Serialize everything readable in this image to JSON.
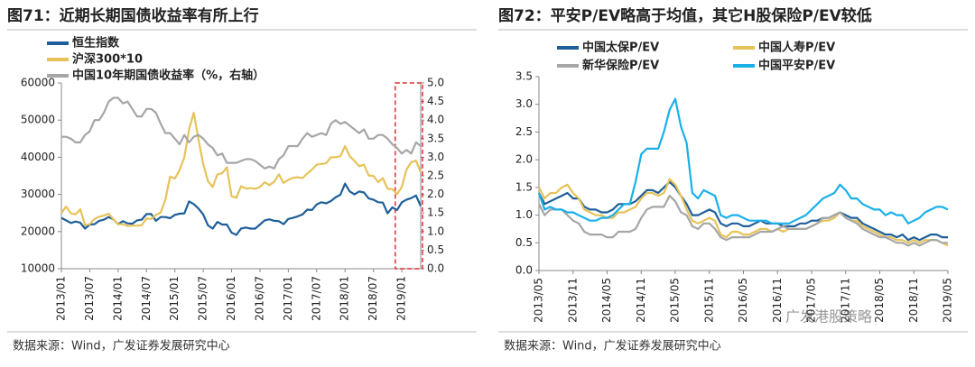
{
  "chart_data": [
    {
      "type": "line",
      "title": "图71：近期长期国债收益率有所上行",
      "source": "数据来源：Wind，广发证券发展研究中心",
      "categories": [
        "2013/01",
        null,
        null,
        null,
        null,
        null,
        "2013/07",
        null,
        null,
        null,
        null,
        null,
        "2014/01",
        null,
        null,
        null,
        null,
        null,
        "2014/07",
        null,
        null,
        null,
        null,
        null,
        "2015/01",
        null,
        null,
        null,
        null,
        null,
        "2015/07",
        null,
        null,
        null,
        null,
        null,
        "2016/01",
        null,
        null,
        null,
        null,
        null,
        "2016/07",
        null,
        null,
        null,
        null,
        null,
        "2017/01",
        null,
        null,
        null,
        null,
        null,
        "2017/07",
        null,
        null,
        null,
        null,
        null,
        "2018/01",
        null,
        null,
        null,
        null,
        null,
        "2018/07",
        null,
        null,
        null,
        null,
        null,
        "2019/01",
        null,
        null,
        null,
        null
      ],
      "ylim": [
        10000,
        60000
      ],
      "yticks": [
        10000,
        20000,
        30000,
        40000,
        50000,
        60000
      ],
      "y2lim": [
        0,
        5
      ],
      "y2ticks": [
        {
          "value": 0,
          "label": "0.0"
        },
        {
          "value": 0.5,
          "label": "0.5"
        },
        {
          "value": 1,
          "label": "1.0"
        },
        {
          "value": 1.5,
          "label": "1.5"
        },
        {
          "value": 2,
          "label": "2.0"
        },
        {
          "value": 2.5,
          "label": "2.5"
        },
        {
          "value": 3,
          "label": "3.0"
        },
        {
          "value": 3.5,
          "label": "3.5"
        },
        {
          "value": 4,
          "label": "4.0"
        },
        {
          "value": 4.5,
          "label": "4.5"
        },
        {
          "value": 5,
          "label": "5.0"
        }
      ],
      "series": [
        {
          "name": "恒生指数",
          "color": "#1f5f99",
          "values": [
            23700,
            23000,
            22300,
            22700,
            22400,
            20800,
            21900,
            22000,
            22900,
            23200,
            23900,
            23300,
            22000,
            22800,
            22200,
            22100,
            23000,
            23200,
            24700,
            24700,
            22900,
            23900,
            23900,
            23600,
            24500,
            24800,
            24900,
            28100,
            27400,
            26200,
            24600,
            21700,
            20800,
            22600,
            21900,
            21900,
            19700,
            19100,
            20800,
            21100,
            20800,
            20800,
            21900,
            23000,
            23300,
            22900,
            22800,
            22000,
            23400,
            23700,
            24100,
            24600,
            25900,
            25800,
            27300,
            27900,
            27600,
            28200,
            29200,
            29900,
            32900,
            30800,
            30000,
            30800,
            30500,
            28900,
            28600,
            27900,
            27800,
            24900,
            26500,
            25800,
            27900,
            28600,
            29000,
            29700,
            26900
          ]
        },
        {
          "name": "沪深300*10",
          "color": "#e6c35a",
          "values": [
            25000,
            26700,
            24900,
            24600,
            26000,
            21700,
            22000,
            23400,
            24000,
            24300,
            24800,
            23300,
            22000,
            22000,
            21500,
            21600,
            21600,
            21700,
            23500,
            23400,
            24500,
            25100,
            28600,
            34800,
            34300,
            36500,
            40000,
            47500,
            52000,
            44700,
            38200,
            33600,
            32000,
            35400,
            35700,
            37300,
            29500,
            29100,
            32200,
            31600,
            31700,
            31500,
            32000,
            33300,
            32500,
            33400,
            35400,
            33100,
            33900,
            34500,
            34600,
            34400,
            35600,
            36700,
            38000,
            38200,
            38400,
            40000,
            40000,
            40300,
            43000,
            40300,
            39000,
            37600,
            38000,
            35100,
            35000,
            33300,
            34400,
            31500,
            31400,
            30100,
            32000,
            36700,
            38700,
            39100,
            36000
          ]
        },
        {
          "name": "中国10年期国债收益率（%，右轴）",
          "color": "#a6a6a6",
          "axis": "y2",
          "values": [
            3.55,
            3.55,
            3.5,
            3.4,
            3.4,
            3.6,
            3.7,
            4.0,
            4.0,
            4.2,
            4.5,
            4.6,
            4.6,
            4.45,
            4.5,
            4.3,
            4.1,
            4.1,
            4.3,
            4.3,
            4.2,
            3.9,
            3.65,
            3.65,
            3.5,
            3.35,
            3.6,
            3.4,
            3.55,
            3.6,
            3.5,
            3.35,
            3.25,
            3.05,
            3.1,
            2.85,
            2.85,
            2.85,
            2.9,
            2.95,
            2.95,
            2.9,
            2.8,
            2.7,
            2.75,
            2.7,
            2.95,
            3.05,
            3.3,
            3.3,
            3.3,
            3.5,
            3.65,
            3.55,
            3.6,
            3.65,
            3.6,
            3.9,
            4.0,
            3.9,
            3.95,
            3.85,
            3.75,
            3.65,
            3.75,
            3.5,
            3.5,
            3.6,
            3.6,
            3.5,
            3.35,
            3.25,
            3.1,
            3.2,
            3.1,
            3.4,
            3.3
          ]
        }
      ]
    },
    {
      "type": "line",
      "title": "图72：平安P/EV略高于均值，其它H股保险P/EV较低",
      "source": "数据来源：Wind，广发证券发展研究中心",
      "watermark": "广发港股策略",
      "categories": [
        "2013/05",
        null,
        null,
        null,
        null,
        null,
        "2013/11",
        null,
        null,
        null,
        null,
        null,
        "2014/05",
        null,
        null,
        null,
        null,
        null,
        "2014/11",
        null,
        null,
        null,
        null,
        null,
        "2015/05",
        null,
        null,
        null,
        null,
        null,
        "2015/11",
        null,
        null,
        null,
        null,
        null,
        "2016/05",
        null,
        null,
        null,
        null,
        null,
        "2016/11",
        null,
        null,
        null,
        null,
        null,
        "2017/05",
        null,
        null,
        null,
        null,
        null,
        "2017/11",
        null,
        null,
        null,
        null,
        null,
        "2018/05",
        null,
        null,
        null,
        null,
        null,
        "2018/11",
        null,
        null,
        null,
        null,
        null,
        "2019/05"
      ],
      "ylim": [
        0,
        3.5
      ],
      "yticks": [
        {
          "value": 0,
          "label": "0.0"
        },
        {
          "value": 0.5,
          "label": "0.5"
        },
        {
          "value": 1,
          "label": "1.0"
        },
        {
          "value": 1.5,
          "label": "1.5"
        },
        {
          "value": 2,
          "label": "2.0"
        },
        {
          "value": 2.5,
          "label": "2.5"
        },
        {
          "value": 3,
          "label": "3.0"
        },
        {
          "value": 3.5,
          "label": "3.5"
        }
      ],
      "series": [
        {
          "name": "中国太保P/EV",
          "color": "#1f5f99",
          "values": [
            1.4,
            1.2,
            1.25,
            1.3,
            1.35,
            1.4,
            1.3,
            1.3,
            1.15,
            1.1,
            1.1,
            1.05,
            1.05,
            1.1,
            1.2,
            1.2,
            1.2,
            1.25,
            1.35,
            1.45,
            1.45,
            1.4,
            1.5,
            1.6,
            1.5,
            1.35,
            1.2,
            1.0,
            1.0,
            1.05,
            1.1,
            1.05,
            0.85,
            0.8,
            0.85,
            0.85,
            0.8,
            0.8,
            0.85,
            0.9,
            0.85,
            0.85,
            0.85,
            0.8,
            0.8,
            0.8,
            0.85,
            0.85,
            0.9,
            0.9,
            0.95,
            0.95,
            1.0,
            1.05,
            1.0,
            0.95,
            0.95,
            0.85,
            0.8,
            0.75,
            0.7,
            0.65,
            0.65,
            0.6,
            0.65,
            0.55,
            0.6,
            0.55,
            0.6,
            0.65,
            0.65,
            0.6,
            0.6
          ]
        },
        {
          "name": "中国人寿P/EV",
          "color": "#e6c35a",
          "values": [
            1.5,
            1.3,
            1.4,
            1.4,
            1.5,
            1.55,
            1.4,
            1.3,
            1.1,
            1.05,
            1.0,
            1.0,
            0.95,
            0.95,
            1.05,
            1.05,
            1.1,
            1.15,
            1.3,
            1.4,
            1.4,
            1.35,
            1.4,
            1.65,
            1.55,
            1.35,
            1.1,
            0.9,
            0.85,
            0.9,
            0.95,
            0.9,
            0.65,
            0.6,
            0.7,
            0.7,
            0.65,
            0.65,
            0.7,
            0.75,
            0.75,
            0.7,
            0.75,
            0.7,
            0.75,
            0.75,
            0.75,
            0.75,
            0.8,
            0.85,
            0.9,
            0.9,
            0.95,
            1.05,
            0.95,
            0.9,
            0.9,
            0.8,
            0.75,
            0.7,
            0.65,
            0.6,
            0.6,
            0.55,
            0.55,
            0.5,
            0.55,
            0.5,
            0.55,
            0.55,
            0.55,
            0.5,
            0.45
          ]
        },
        {
          "name": "新华保险P/EV",
          "color": "#a6a6a6",
          "values": [
            1.2,
            1.0,
            1.1,
            1.1,
            1.1,
            1.0,
            0.9,
            0.85,
            0.7,
            0.65,
            0.65,
            0.65,
            0.6,
            0.6,
            0.7,
            0.7,
            0.7,
            0.75,
            0.95,
            1.1,
            1.15,
            1.15,
            1.15,
            1.35,
            1.25,
            1.05,
            1.0,
            0.8,
            0.75,
            0.85,
            0.85,
            0.75,
            0.6,
            0.55,
            0.6,
            0.6,
            0.6,
            0.6,
            0.65,
            0.7,
            0.7,
            0.7,
            0.75,
            0.8,
            0.75,
            0.75,
            0.75,
            0.75,
            0.8,
            0.85,
            0.95,
            0.95,
            1.0,
            1.05,
            0.95,
            0.9,
            0.85,
            0.75,
            0.7,
            0.65,
            0.6,
            0.6,
            0.55,
            0.5,
            0.5,
            0.45,
            0.5,
            0.45,
            0.5,
            0.55,
            0.55,
            0.5,
            0.5
          ]
        },
        {
          "name": "中国平安P/EV",
          "color": "#1ab0e8",
          "values": [
            1.4,
            1.1,
            1.15,
            1.1,
            1.1,
            1.05,
            1.05,
            1.0,
            0.95,
            0.9,
            0.9,
            0.95,
            0.95,
            1.0,
            1.1,
            1.2,
            1.2,
            1.6,
            2.1,
            2.2,
            2.2,
            2.2,
            2.5,
            2.9,
            3.1,
            2.6,
            2.3,
            1.4,
            1.3,
            1.45,
            1.4,
            1.35,
            1.0,
            0.95,
            1.0,
            1.0,
            0.95,
            0.9,
            0.9,
            0.9,
            0.9,
            0.85,
            0.85,
            0.85,
            0.85,
            0.9,
            0.95,
            1.0,
            1.1,
            1.2,
            1.3,
            1.35,
            1.4,
            1.55,
            1.45,
            1.3,
            1.3,
            1.2,
            1.15,
            1.1,
            1.1,
            1.0,
            1.05,
            1.0,
            1.0,
            0.85,
            0.9,
            0.95,
            1.05,
            1.1,
            1.15,
            1.15,
            1.1
          ]
        }
      ]
    }
  ]
}
